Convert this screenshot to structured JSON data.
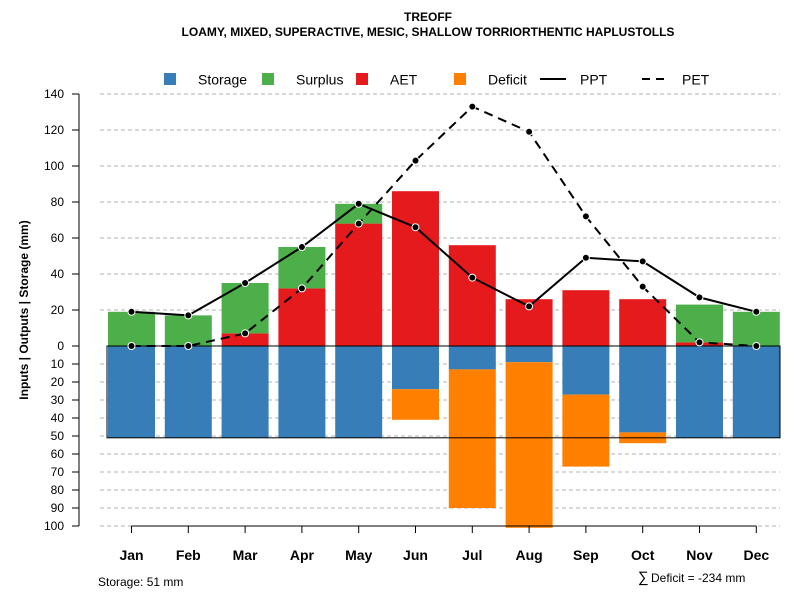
{
  "chart_data": {
    "type": "bar",
    "title": "TREOFF",
    "subtitle": "LOAMY, MIXED, SUPERACTIVE, MESIC, SHALLOW TORRIORTHENTIC HAPLUSTOLLS",
    "ylabel": "Inputs | Outputs | Storage    (mm)",
    "categories": [
      "Jan",
      "Feb",
      "Mar",
      "Apr",
      "May",
      "Jun",
      "Jul",
      "Aug",
      "Sep",
      "Oct",
      "Nov",
      "Dec"
    ],
    "ylim_upper": [
      0,
      140
    ],
    "ylim_lower": [
      0,
      100
    ],
    "upper_ticks": [
      "0",
      "20",
      "40",
      "60",
      "80",
      "100",
      "120",
      "140"
    ],
    "lower_ticks": [
      "10",
      "20",
      "30",
      "40",
      "50",
      "60",
      "70",
      "80",
      "90",
      "100"
    ],
    "grid": true,
    "legend_position": "top",
    "legend": [
      {
        "label": "Storage",
        "type": "square",
        "color": "#377eb8"
      },
      {
        "label": "Surplus",
        "type": "square",
        "color": "#4daf4a"
      },
      {
        "label": "AET",
        "type": "square",
        "color": "#e41a1c"
      },
      {
        "label": "Deficit",
        "type": "square",
        "color": "#ff7f00"
      },
      {
        "label": "PPT",
        "type": "solid-line",
        "color": "#000000"
      },
      {
        "label": "PET",
        "type": "dashed-line",
        "color": "#000000"
      }
    ],
    "series": [
      {
        "name": "AET",
        "values": [
          0,
          0,
          7,
          32,
          68,
          86,
          56,
          26,
          31,
          26,
          2,
          0
        ]
      },
      {
        "name": "Surplus",
        "values": [
          19,
          17,
          28,
          23,
          11,
          0,
          0,
          0,
          0,
          0,
          21,
          19
        ]
      },
      {
        "name": "Storage",
        "values": [
          51,
          51,
          51,
          51,
          51,
          24,
          13,
          9,
          27,
          48,
          51,
          51
        ]
      },
      {
        "name": "Deficit",
        "values": [
          0,
          0,
          0,
          0,
          0,
          17,
          77,
          92,
          40,
          6,
          0,
          0
        ]
      },
      {
        "name": "PPT",
        "values": [
          19,
          17,
          35,
          55,
          79,
          66,
          38,
          22,
          49,
          47,
          27,
          19
        ]
      },
      {
        "name": "PET",
        "values": [
          0,
          0,
          7,
          32,
          68,
          103,
          133,
          119,
          72,
          33,
          2,
          0
        ]
      }
    ],
    "storage_capacity": 51
  },
  "colors": {
    "storage": "#377eb8",
    "surplus": "#4daf4a",
    "aet": "#e41a1c",
    "deficit": "#ff7f00",
    "grid": "#b3b3b3"
  },
  "footer": {
    "storage_text": "Storage: 51 mm",
    "deficit_symbol": "∑",
    "deficit_text": "Deficit = -234 mm"
  }
}
